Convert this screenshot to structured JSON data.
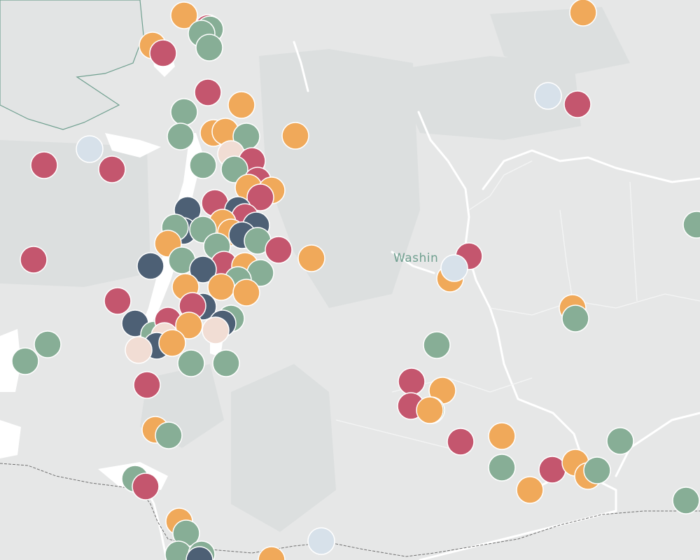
{
  "map": {
    "labels": {
      "state": "Washin"
    },
    "colors": {
      "land": "#e6e7e7",
      "land_shade": "#dcdfdf",
      "water": "#ffffff",
      "border": "#6f9f8f",
      "county_line": "#ffffff",
      "state_line": "#6f6f6f"
    },
    "marker_categories": {
      "red": "#c4566e",
      "orange": "#f0a95a",
      "green": "#87ae96",
      "navy": "#4d6075",
      "peach": "#f1ddd4",
      "lightblue": "#d7e1ea"
    }
  }
}
